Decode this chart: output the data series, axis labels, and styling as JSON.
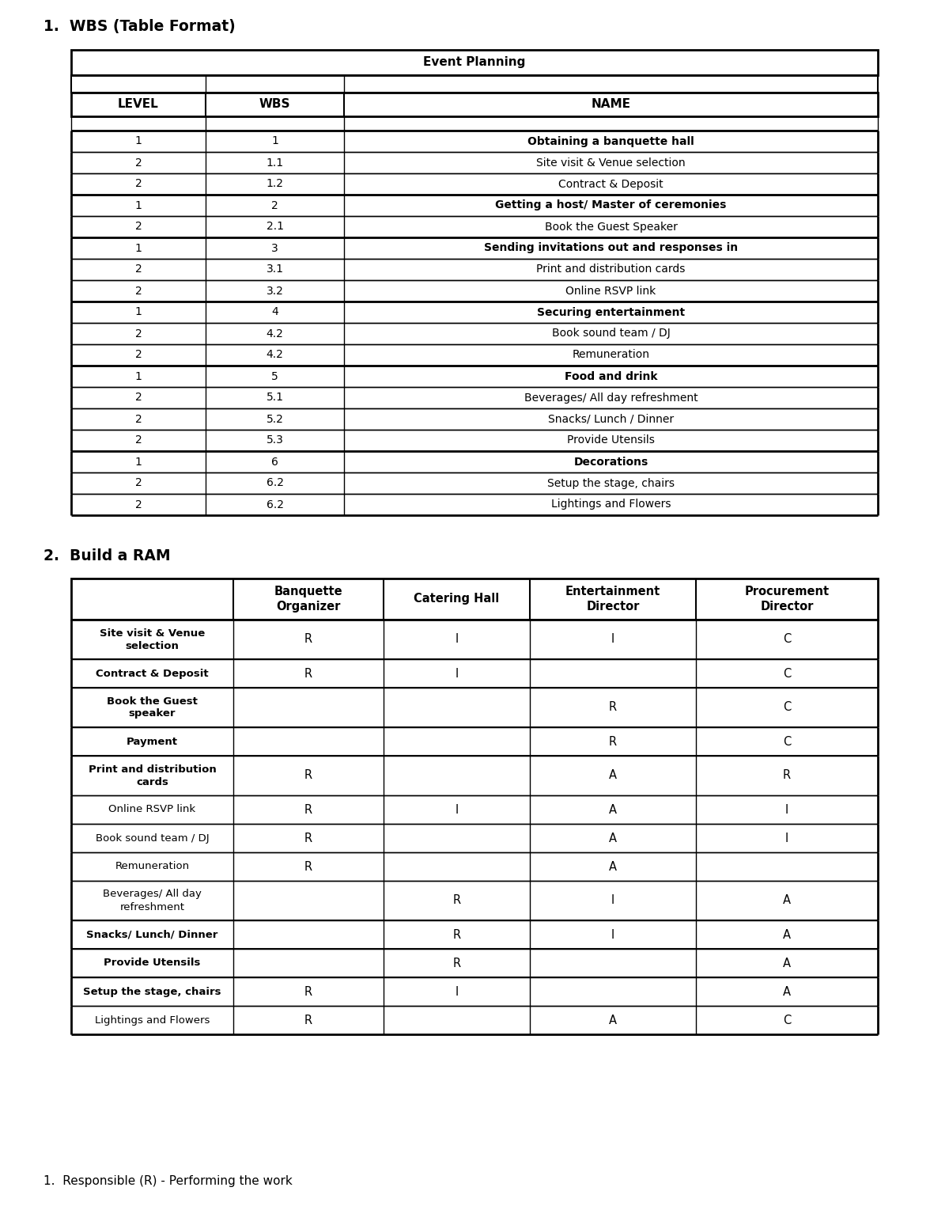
{
  "title1": "1.  WBS (Table Format)",
  "title2": "2.  Build a RAM",
  "footer": "1.  Responsible (R) - Performing the work",
  "wbs_table": {
    "header_title": "Event Planning",
    "col_headers": [
      "LEVEL",
      "WBS",
      "NAME"
    ],
    "rows": [
      [
        "1",
        "1",
        "Obtaining a banquette hall",
        true
      ],
      [
        "2",
        "1.1",
        "Site visit & Venue selection",
        false
      ],
      [
        "2",
        "1.2",
        "Contract & Deposit",
        false
      ],
      [
        "1",
        "2",
        "Getting a host/ Master of ceremonies",
        true
      ],
      [
        "2",
        "2.1",
        "Book the Guest Speaker",
        false
      ],
      [
        "1",
        "3",
        "Sending invitations out and responses in",
        true
      ],
      [
        "2",
        "3.1",
        "Print and distribution cards",
        false
      ],
      [
        "2",
        "3.2",
        "Online RSVP link",
        false
      ],
      [
        "1",
        "4",
        "Securing entertainment",
        true
      ],
      [
        "2",
        "4.2",
        "Book sound team / DJ",
        false
      ],
      [
        "2",
        "4.2",
        "Remuneration",
        false
      ],
      [
        "1",
        "5",
        "Food and drink",
        true
      ],
      [
        "2",
        "5.1",
        "Beverages/ All day refreshment",
        false
      ],
      [
        "2",
        "5.2",
        "Snacks/ Lunch / Dinner",
        false
      ],
      [
        "2",
        "5.3",
        "Provide Utensils",
        false
      ],
      [
        "1",
        "6",
        "Decorations",
        true
      ],
      [
        "2",
        "6.2",
        "Setup the stage, chairs",
        false
      ],
      [
        "2",
        "6.2",
        "Lightings and Flowers",
        false
      ]
    ]
  },
  "ram_table": {
    "col_headers": [
      "",
      "Banquette\nOrganizer",
      "Catering Hall",
      "Entertainment\nDirector",
      "Procurement\nDirector"
    ],
    "rows": [
      [
        "Site visit & Venue\nselection",
        "R",
        "I",
        "I",
        "C"
      ],
      [
        "Contract & Deposit",
        "R",
        "I",
        "",
        "C"
      ],
      [
        "Book the Guest\nspeaker",
        "",
        "",
        "R",
        "C"
      ],
      [
        "Payment",
        "",
        "",
        "R",
        "C"
      ],
      [
        "Print and distribution\ncards",
        "R",
        "",
        "A",
        "R"
      ],
      [
        "Online RSVP link",
        "R",
        "I",
        "A",
        "I"
      ],
      [
        "Book sound team / DJ",
        "R",
        "",
        "A",
        "I"
      ],
      [
        "Remuneration",
        "R",
        "",
        "A",
        ""
      ],
      [
        "Beverages/ All day\nrefreshment",
        "",
        "R",
        "I",
        "A"
      ],
      [
        "Snacks/ Lunch/ Dinner",
        "",
        "R",
        "I",
        "A"
      ],
      [
        "Provide Utensils",
        "",
        "R",
        "",
        "A"
      ],
      [
        "Setup the stage, chairs",
        "R",
        "I",
        "",
        "A"
      ],
      [
        "Lightings and Flowers",
        "R",
        "",
        "A",
        "C"
      ]
    ],
    "bold_rows": [
      1,
      2,
      3,
      4,
      5,
      10,
      11,
      12
    ]
  },
  "bg_color": "#ffffff",
  "text_color": "#000000"
}
